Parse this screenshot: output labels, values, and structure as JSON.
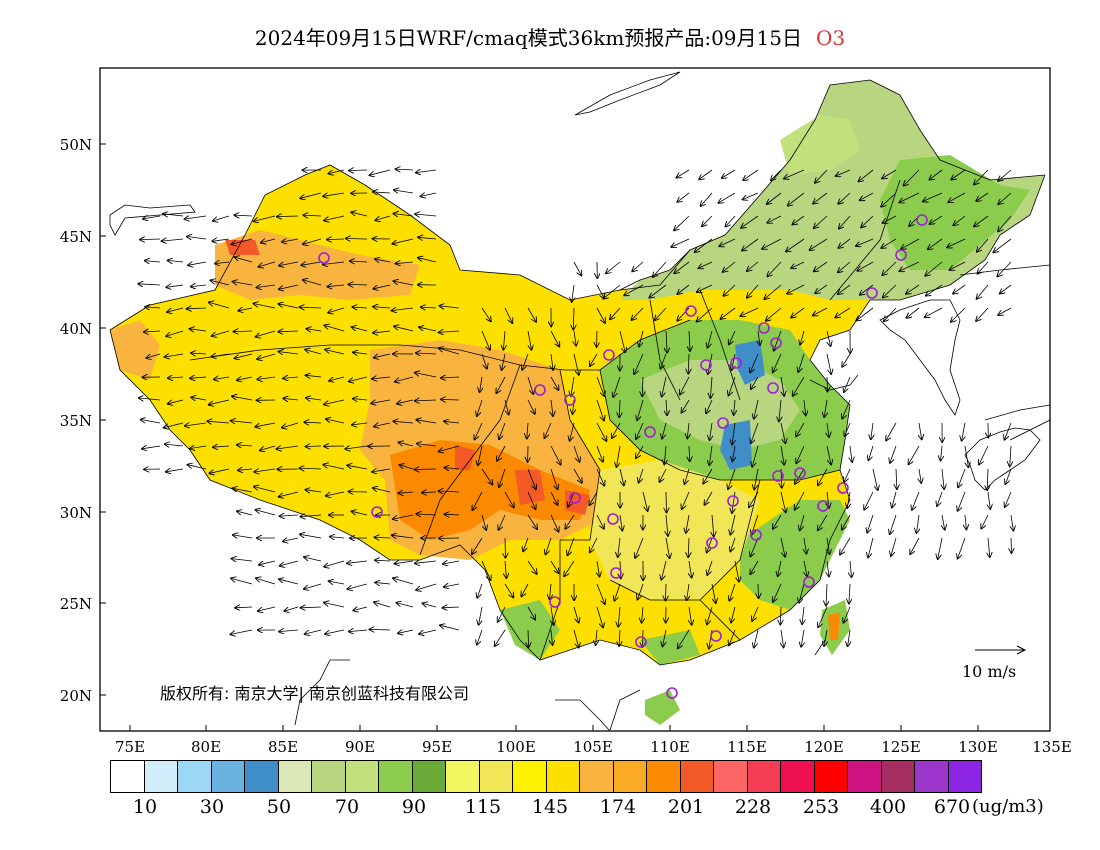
{
  "title": {
    "main": "2024年09月15日WRF/cmaq模式36km预报产品:09月15日",
    "pollutant": "O3"
  },
  "axes": {
    "lat_labels": [
      "50N",
      "45N",
      "40N",
      "35N",
      "30N",
      "25N",
      "20N"
    ],
    "lon_labels": [
      "75E",
      "80E",
      "85E",
      "90E",
      "95E",
      "100E",
      "105E",
      "110E",
      "115E",
      "120E",
      "125E",
      "130E",
      "135E"
    ]
  },
  "copyright": "版权所有: 南京大学| 南京创蓝科技有限公司",
  "wind_reference": "10 m/s",
  "legend": {
    "colors": [
      "#ffffff",
      "#d2eefb",
      "#9cd8f5",
      "#6cb2e0",
      "#3f8ec8",
      "#dce8b8",
      "#b8d680",
      "#c2e07c",
      "#8ccc4c",
      "#6aaa38",
      "#f2f560",
      "#f0e658",
      "#fff200",
      "#fde000",
      "#f9b440",
      "#fbaa28",
      "#fc8a00",
      "#f45a28",
      "#fd6464",
      "#f43c54",
      "#ee0f50",
      "#fe0000",
      "#cd1382",
      "#a62d60",
      "#9c36ca",
      "#8c26e4"
    ],
    "labels": [
      "10",
      "30",
      "50",
      "70",
      "90",
      "115",
      "145",
      "174",
      "201",
      "228",
      "253",
      "400",
      "670"
    ],
    "unit": "(ug/m3)"
  }
}
